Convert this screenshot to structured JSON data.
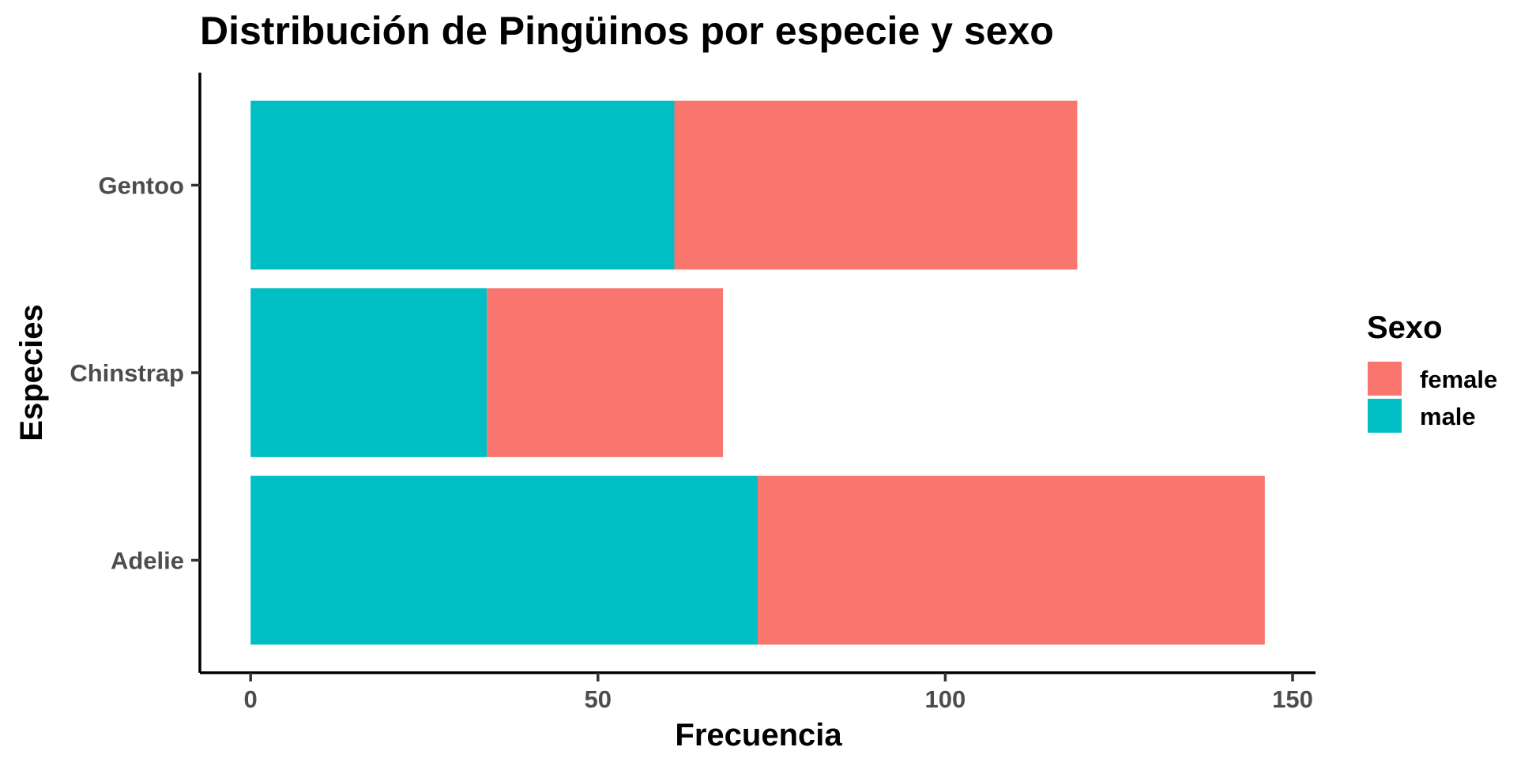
{
  "chart_data": {
    "type": "bar",
    "orientation": "horizontal",
    "stacked": true,
    "title": "Distribución de Pingüinos por especie y sexo",
    "xlabel": "Frecuencia",
    "ylabel": "Especies",
    "categories": [
      "Adelie",
      "Chinstrap",
      "Gentoo"
    ],
    "series": [
      {
        "name": "male",
        "values": [
          73,
          34,
          61
        ],
        "color": "#00BFC4"
      },
      {
        "name": "female",
        "values": [
          73,
          34,
          58
        ],
        "color": "#F8766D"
      }
    ],
    "xlim": [
      -7.3,
      153.3
    ],
    "xticks": [
      0,
      50,
      100,
      150
    ],
    "grid": false,
    "legend": {
      "title": "Sexo",
      "placement": "right",
      "entries": [
        {
          "label": "female",
          "color": "#F8766D"
        },
        {
          "label": "male",
          "color": "#00BFC4"
        }
      ]
    }
  }
}
